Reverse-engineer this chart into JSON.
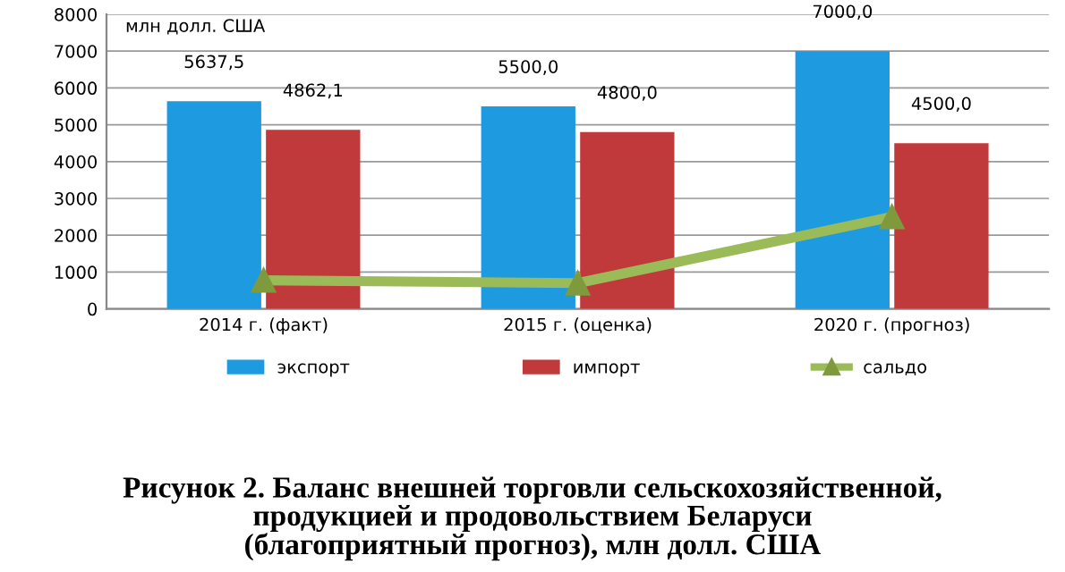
{
  "chart_data": {
    "type": "bar",
    "title": "Рисунок 2. Баланс внешней торговли сельскохозяйственной,\nпродукцией и продовольствием Беларуси\n(благоприятный прогноз), млн долл. США",
    "ylabel": "млн долл. США",
    "categories": [
      "2014 г. (факт)",
      "2015 г. (оценка)",
      "2020 г. (прогноз)"
    ],
    "series": [
      {
        "name": "экспорт",
        "color": "#1e9ae0",
        "values": [
          5637.5,
          5500.0,
          7000.0
        ],
        "value_labels": [
          "5637,5",
          "5500,0",
          "7000,0"
        ]
      },
      {
        "name": "импорт",
        "color": "#c0393b",
        "values": [
          4862.1,
          4800.0,
          4500.0
        ],
        "value_labels": [
          "4862,1",
          "4800,0",
          "4500,0"
        ]
      },
      {
        "name": "сальдо",
        "type": "line",
        "color": "#9bbb59",
        "marker": "triangle",
        "values": [
          775,
          700,
          2500
        ]
      }
    ],
    "ylim": [
      0,
      8000
    ],
    "yticks": [
      0,
      1000,
      2000,
      3000,
      4000,
      5000,
      6000,
      7000,
      8000
    ],
    "grid": "y",
    "legend": "bottom"
  }
}
